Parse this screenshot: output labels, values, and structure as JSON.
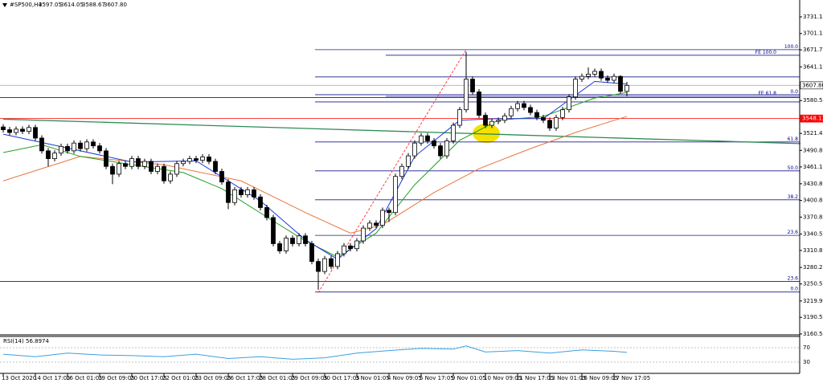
{
  "chart_data": {
    "type": "candlestick",
    "header": {
      "symbol": "#SP500,H4",
      "ohlc": [
        "3597.05",
        "3614.05",
        "3588.67",
        "3607.80"
      ]
    },
    "categories": [
      "13 Oct 2020",
      null,
      null,
      null,
      null,
      "14 Oct 17:05",
      null,
      null,
      null,
      null,
      "16 Oct 01:05",
      null,
      null,
      null,
      null,
      "19 Oct 09:05",
      null,
      null,
      null,
      null,
      "20 Oct 17:05",
      null,
      null,
      null,
      null,
      "22 Oct 01:05",
      null,
      null,
      null,
      null,
      "23 Oct 09:05",
      null,
      null,
      null,
      null,
      "26 Oct 17:05",
      null,
      null,
      null,
      null,
      "28 Oct 01:05",
      null,
      null,
      null,
      null,
      "29 Oct 09:05",
      null,
      null,
      null,
      null,
      "30 Oct 17:05",
      null,
      null,
      null,
      null,
      "3 Nov 01:05",
      null,
      null,
      null,
      null,
      "4 Nov 09:05",
      null,
      null,
      null,
      null,
      "5 Nov 17:05",
      null,
      null,
      null,
      null,
      "9 Nov 01:05",
      null,
      null,
      null,
      null,
      "10 Nov 09:05",
      null,
      null,
      null,
      null,
      "11 Nov 17:05",
      null,
      null,
      null,
      null,
      "13 Nov 01:05",
      null,
      null,
      null,
      null,
      "16 Nov 09:05",
      null,
      null,
      null,
      null,
      "17 Nov 17:05",
      null,
      null
    ],
    "open": [
      3533,
      3528,
      3523,
      3529,
      3525,
      3532,
      3513,
      3490,
      3476,
      3486,
      3498,
      3490,
      3504,
      3494,
      3506,
      3499,
      3490,
      3462,
      3448,
      3467,
      3462,
      3476,
      3462,
      3471,
      3453,
      3462,
      3436,
      3448,
      3467,
      3471,
      3476,
      3473,
      3479,
      3471,
      3453,
      3434,
      3397,
      3420,
      3411,
      3420,
      3407,
      3388,
      3370,
      3323,
      3310,
      3333,
      3323,
      3337,
      3323,
      3291,
      3273,
      3296,
      3282,
      3305,
      3319,
      3314,
      3328,
      3351,
      3360,
      3356,
      3383,
      3379,
      3444,
      3462,
      3481,
      3504,
      3517,
      3508,
      3499,
      3481,
      3508,
      3536,
      3564,
      3619,
      3596,
      3554,
      3536,
      3543,
      3545,
      3553,
      3566,
      3575,
      3568,
      3559,
      3550,
      3545,
      3531,
      3550,
      3564,
      3587,
      3619,
      3624,
      3628,
      3633,
      3621,
      3617,
      3624,
      3597.05
    ],
    "high": [
      3538,
      3533,
      3534,
      3534,
      3537,
      3537,
      3518,
      3495,
      3491,
      3503,
      3503,
      3509,
      3509,
      3511,
      3511,
      3504,
      3495,
      3467,
      3472,
      3472,
      3481,
      3481,
      3476,
      3476,
      3467,
      3467,
      3453,
      3472,
      3476,
      3481,
      3481,
      3484,
      3484,
      3476,
      3458,
      3439,
      3425,
      3425,
      3425,
      3425,
      3412,
      3393,
      3375,
      3328,
      3338,
      3338,
      3342,
      3342,
      3328,
      3296,
      3301,
      3301,
      3310,
      3324,
      3324,
      3333,
      3356,
      3365,
      3365,
      3388,
      3388,
      3449,
      3467,
      3486,
      3509,
      3522,
      3522,
      3513,
      3504,
      3513,
      3541,
      3569,
      3668,
      3624,
      3601,
      3559,
      3548,
      3550,
      3558,
      3571,
      3580,
      3580,
      3573,
      3564,
      3555,
      3550,
      3555,
      3569,
      3592,
      3624,
      3629,
      3640,
      3638,
      3638,
      3626,
      3629,
      3626,
      3614.05
    ],
    "low": [
      3523,
      3518,
      3518,
      3520,
      3520,
      3508,
      3485,
      3462,
      3471,
      3481,
      3485,
      3485,
      3489,
      3489,
      3494,
      3485,
      3457,
      3430,
      3443,
      3457,
      3457,
      3457,
      3457,
      3448,
      3448,
      3431,
      3431,
      3443,
      3462,
      3466,
      3468,
      3468,
      3466,
      3448,
      3429,
      3385,
      3392,
      3406,
      3406,
      3402,
      3383,
      3365,
      3318,
      3305,
      3305,
      3318,
      3318,
      3318,
      3286,
      3240,
      3268,
      3277,
      3277,
      3300,
      3309,
      3309,
      3323,
      3346,
      3351,
      3351,
      3362,
      3374,
      3439,
      3457,
      3476,
      3499,
      3503,
      3494,
      3476,
      3476,
      3503,
      3531,
      3559,
      3591,
      3549,
      3531,
      3531,
      3538,
      3540,
      3548,
      3561,
      3563,
      3554,
      3545,
      3540,
      3526,
      3526,
      3545,
      3559,
      3582,
      3614,
      3619,
      3623,
      3616,
      3612,
      3612,
      3593,
      3588.67
    ],
    "close": [
      3528,
      3523,
      3529,
      3525,
      3532,
      3513,
      3490,
      3476,
      3486,
      3498,
      3490,
      3504,
      3494,
      3506,
      3499,
      3490,
      3462,
      3448,
      3467,
      3462,
      3476,
      3462,
      3471,
      3453,
      3462,
      3436,
      3448,
      3467,
      3471,
      3476,
      3473,
      3479,
      3471,
      3453,
      3434,
      3397,
      3420,
      3411,
      3420,
      3407,
      3388,
      3370,
      3323,
      3310,
      3333,
      3323,
      3337,
      3323,
      3291,
      3273,
      3296,
      3282,
      3305,
      3319,
      3314,
      3328,
      3351,
      3360,
      3356,
      3383,
      3379,
      3444,
      3462,
      3481,
      3504,
      3517,
      3508,
      3499,
      3481,
      3508,
      3536,
      3564,
      3619,
      3596,
      3554,
      3536,
      3543,
      3545,
      3553,
      3566,
      3575,
      3568,
      3559,
      3550,
      3545,
      3531,
      3550,
      3564,
      3587,
      3619,
      3624,
      3628,
      3633,
      3621,
      3617,
      3624,
      3597.05,
      3607.8
    ],
    "moving_averages": [
      {
        "color": "#e9773b",
        "x": [
          0,
          12,
          25,
          37,
          47,
          54,
          59,
          67,
          74,
          82,
          89,
          97
        ],
        "values": [
          3436,
          3480,
          3465,
          3436,
          3379,
          3342,
          3357,
          3415,
          3458,
          3494,
          3523,
          3552
        ]
      },
      {
        "color": "#22a022",
        "x": [
          0,
          6,
          12,
          20,
          28,
          34,
          41,
          47,
          52,
          58,
          64,
          71,
          77,
          84,
          92,
          97
        ],
        "values": [
          3487,
          3501,
          3480,
          3465,
          3451,
          3422,
          3371,
          3328,
          3299,
          3342,
          3429,
          3509,
          3545,
          3552,
          3585,
          3595
        ]
      },
      {
        "color": "#1c39d8",
        "x": [
          0,
          10,
          20,
          30,
          40,
          47,
          52,
          58,
          64,
          71,
          77,
          84,
          92,
          97
        ],
        "values": [
          3520,
          3495,
          3470,
          3472,
          3400,
          3330,
          3295,
          3350,
          3480,
          3545,
          3548,
          3548,
          3615,
          3610
        ]
      }
    ],
    "trendline": {
      "color": "#2e8b57",
      "x": [
        0,
        124
      ],
      "values": [
        3547,
        3503
      ]
    },
    "fibo_ray": {
      "color": "#ff4040",
      "x": [
        49,
        72
      ],
      "values": [
        3235,
        3672
      ]
    },
    "levels": [
      {
        "label": "100.0",
        "value": 3672,
        "start": 49
      },
      {
        "label": "FE 100.0",
        "value": 3662,
        "start": 60
      },
      {
        "label": null,
        "value": 3623,
        "start": 49
      },
      {
        "label": "0.0",
        "value": 3591,
        "start": 49
      },
      {
        "label": "FE 61.8",
        "value": 3588,
        "start": 60
      },
      {
        "label": null,
        "value": 3586,
        "start": 0
      },
      {
        "label": null,
        "value": 3578,
        "start": 49
      },
      {
        "label": "61.8",
        "value": 3506,
        "start": 49
      },
      {
        "label": "50.0",
        "value": 3454,
        "start": 49
      },
      {
        "label": "38.2",
        "value": 3402,
        "start": 49
      },
      {
        "label": "23.6",
        "value": 3338,
        "start": 49
      },
      {
        "label": "23.6",
        "value": 3255,
        "start": 0
      },
      {
        "label": "0.0",
        "value": 3236,
        "start": 49
      }
    ],
    "level_color": "#1a1a8c",
    "support": {
      "value": 3548.13,
      "label": "3548.13",
      "color": "#ff0000"
    },
    "current_price": {
      "value": 3607.8,
      "label": "3607.80",
      "color": "#b0b0b0"
    },
    "ylim": [
      3159,
      3761.4
    ],
    "yticks": [
      {
        "value": 3731.1,
        "label": "3731.10"
      },
      {
        "value": 3701.1,
        "label": "3701.10"
      },
      {
        "value": 3671.7,
        "label": "3671.70"
      },
      {
        "value": 3641.1,
        "label": "3641.10"
      },
      {
        "value": 3580.5,
        "label": "3580.50"
      },
      {
        "value": 3521.4,
        "label": "3521.40"
      },
      {
        "value": 3490.8,
        "label": "3490.80"
      },
      {
        "value": 3461.1,
        "label": "3461.10"
      },
      {
        "value": 3430.8,
        "label": "3430.80"
      },
      {
        "value": 3400.8,
        "label": "3400.80"
      },
      {
        "value": 3370.8,
        "label": "3370.80"
      },
      {
        "value": 3340.5,
        "label": "3340.50"
      },
      {
        "value": 3310.8,
        "label": "3310.80"
      },
      {
        "value": 3280.2,
        "label": "3280.20"
      },
      {
        "value": 3250.5,
        "label": "3250.50"
      },
      {
        "value": 3219.9,
        "label": "3219.90"
      },
      {
        "value": 3190.5,
        "label": "3190.50"
      },
      {
        "value": 3160.5,
        "label": "3160.50"
      }
    ],
    "rsi": {
      "title": "RSI(14)",
      "color": "#3ba0e0",
      "ylim": [
        0,
        100
      ],
      "yticks": [
        70,
        30
      ],
      "x": [
        0,
        5,
        10,
        15,
        20,
        25,
        30,
        35,
        40,
        45,
        50,
        55,
        60,
        65,
        70,
        72,
        75,
        80,
        85,
        90,
        95,
        97
      ],
      "values": [
        52,
        45,
        55,
        50,
        48,
        45,
        52,
        40,
        45,
        38,
        42,
        55,
        62,
        68,
        66,
        75,
        58,
        62,
        55,
        64,
        60,
        56.8974
      ]
    }
  }
}
